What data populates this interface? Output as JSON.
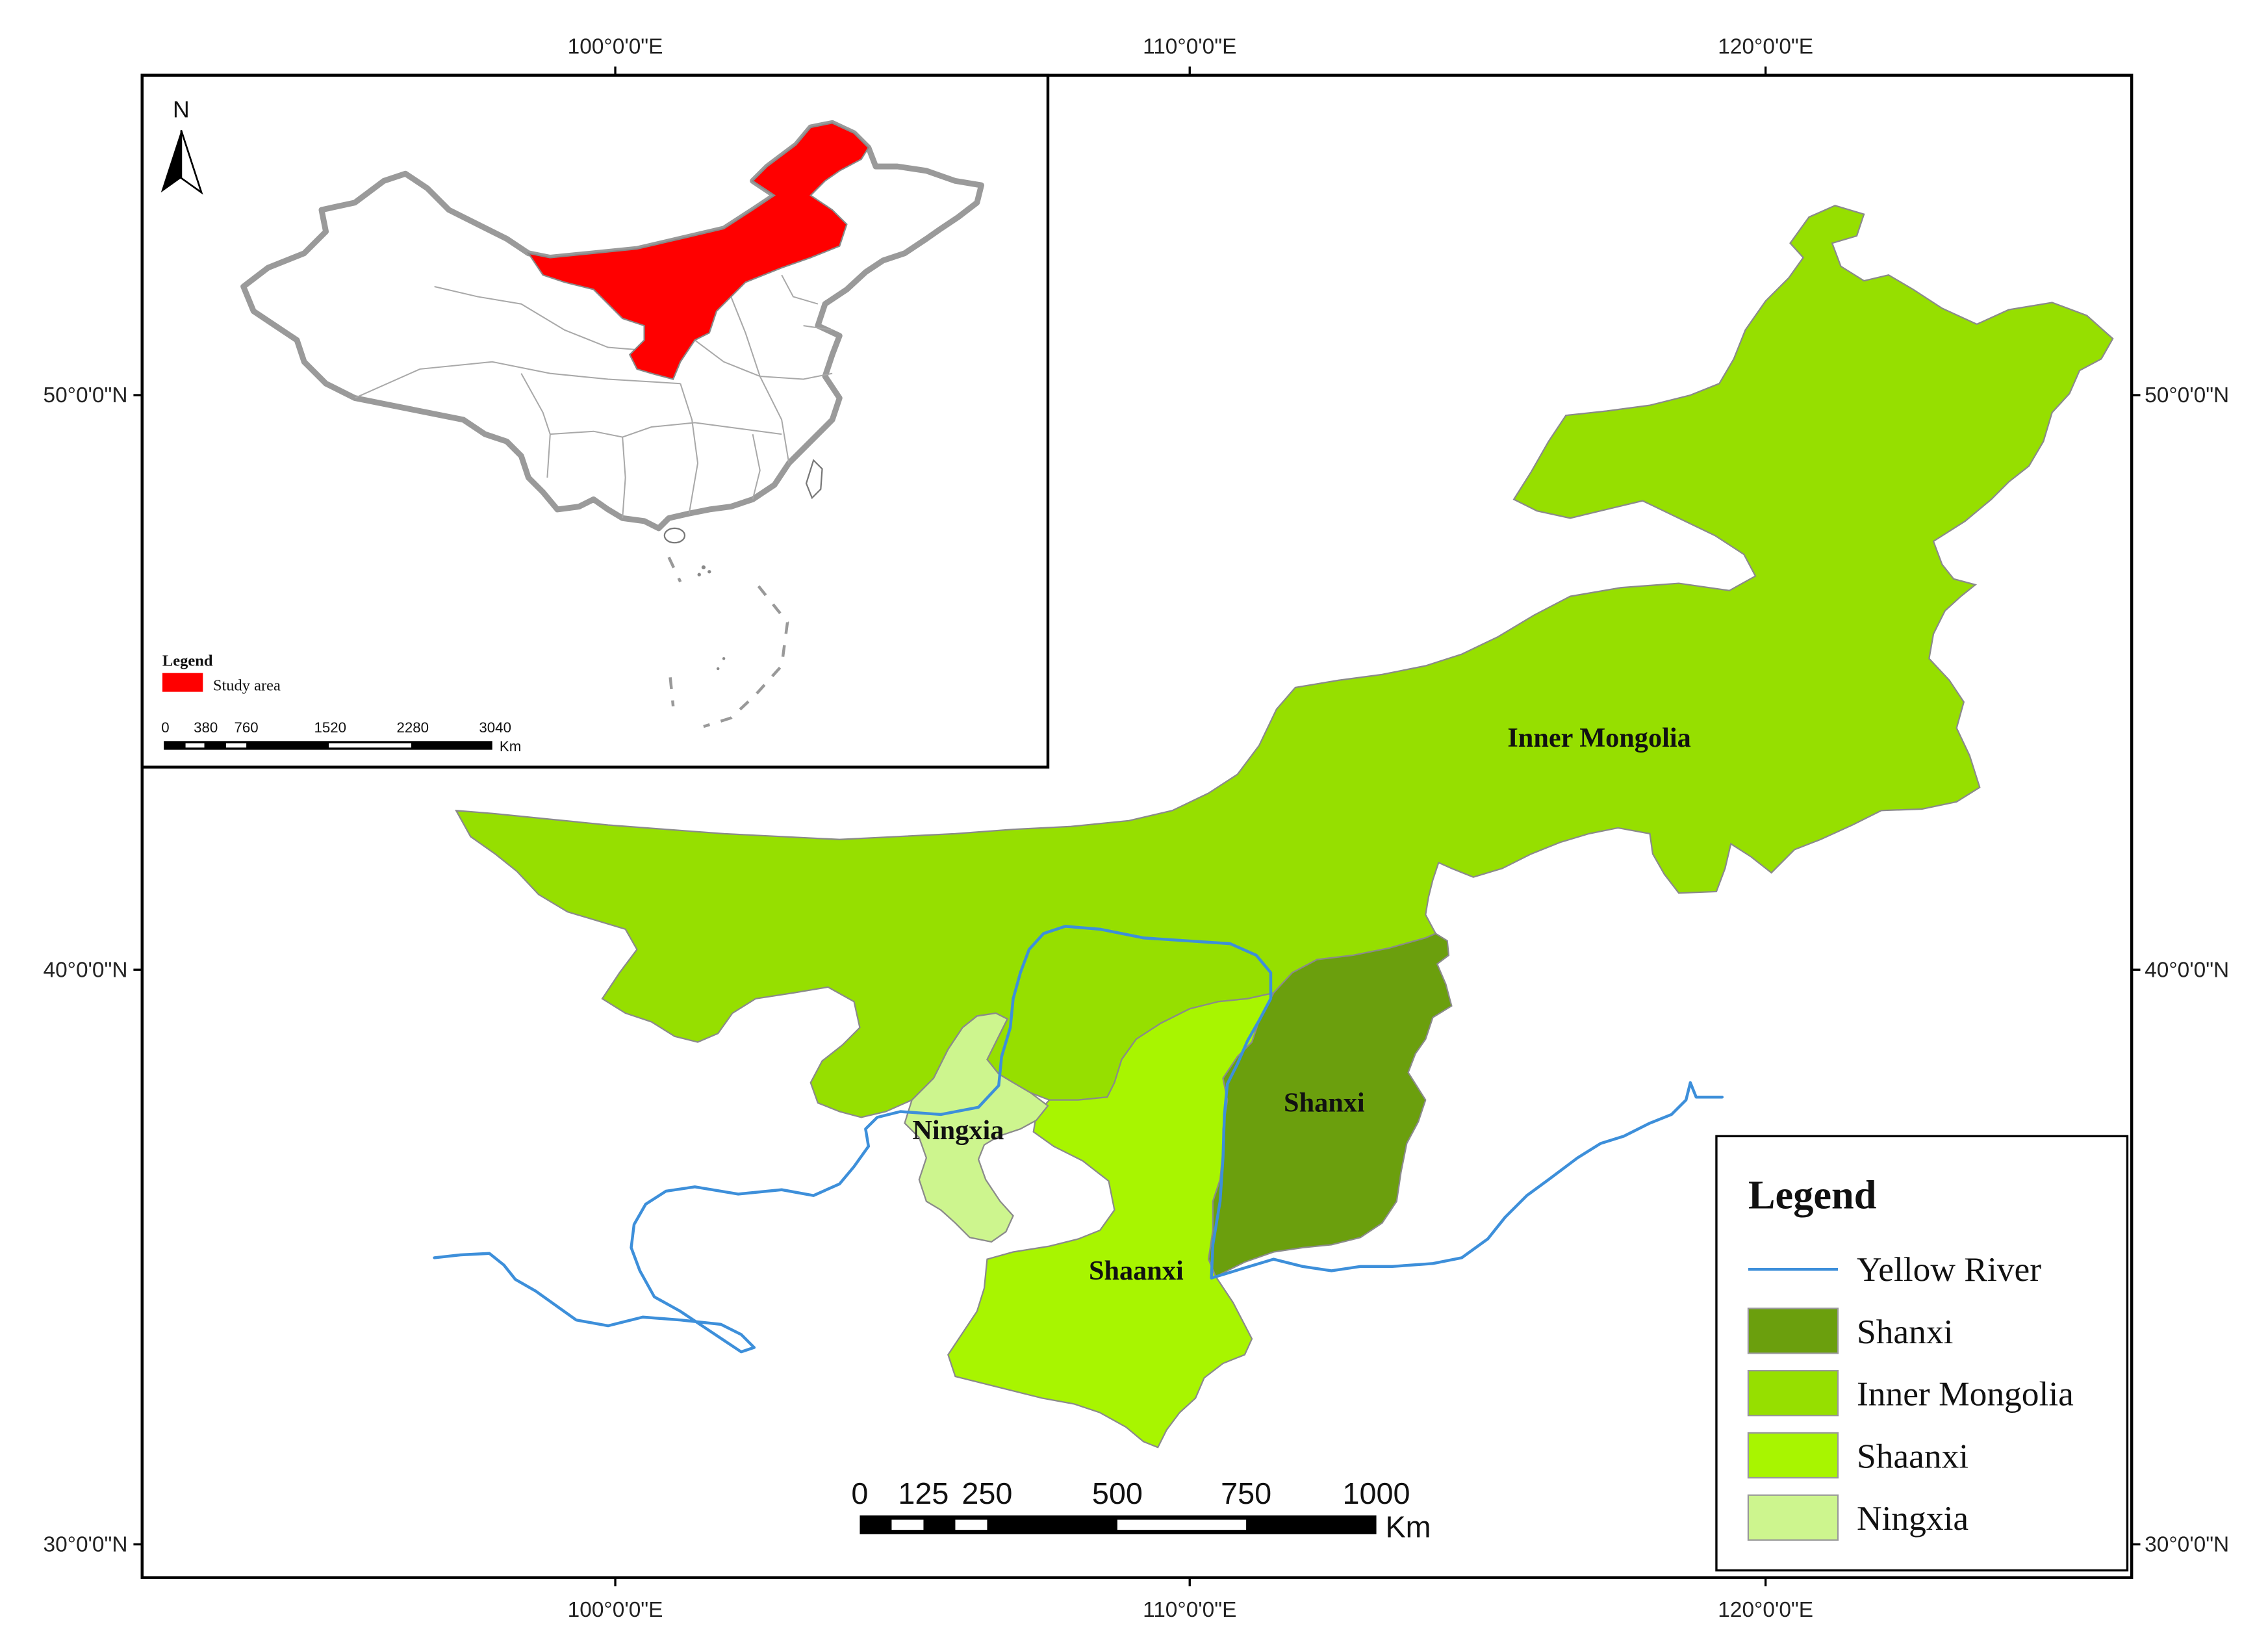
{
  "graticule": {
    "longitude_labels": [
      "100°0'0\"E",
      "110°0'0\"E",
      "120°0'0\"E"
    ],
    "latitude_labels": [
      "50°0'0\"N",
      "40°0'0\"N",
      "30°0'0\"N"
    ]
  },
  "regions": [
    {
      "name": "Inner Mongolia",
      "color": "#96df00"
    },
    {
      "name": "Shanxi",
      "color": "#6b9f0d"
    },
    {
      "name": "Shaanxi",
      "color": "#a8f500"
    },
    {
      "name": "Ningxia",
      "color": "#cdf58e"
    }
  ],
  "river": {
    "name": "Yellow River",
    "color": "#3d8fda"
  },
  "legend": {
    "title": "Legend",
    "items": [
      {
        "label": "Yellow River",
        "color": "#3d8fda"
      },
      {
        "label": "Shanxi",
        "color": "#6b9f0d"
      },
      {
        "label": "Inner Mongolia",
        "color": "#96df00"
      },
      {
        "label": "Shaanxi",
        "color": "#a8f500"
      },
      {
        "label": "Ningxia",
        "color": "#cdf58e"
      }
    ]
  },
  "scale_bar": {
    "labels": [
      "0",
      "125",
      "250",
      "500",
      "750",
      "1000"
    ],
    "unit": "Km"
  },
  "inset": {
    "north_label": "N",
    "legend_title": "Legend",
    "study_area_label": "Study area",
    "study_area_color": "#ff0000",
    "scale_labels": [
      "0",
      "380",
      "760",
      "1520",
      "2280",
      "3040"
    ],
    "scale_unit": "Km"
  }
}
